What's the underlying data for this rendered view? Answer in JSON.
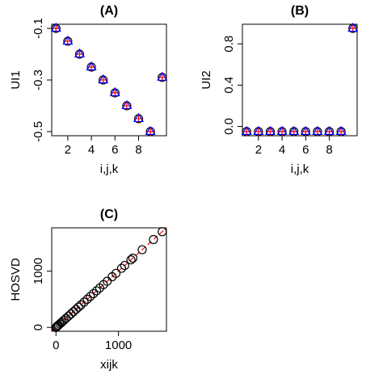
{
  "chart_data": [
    {
      "type": "scatter",
      "title": "(A)",
      "xlabel": "i,j,k",
      "ylabel": "UI1",
      "x": [
        1,
        2,
        3,
        4,
        5,
        6,
        7,
        8,
        9,
        10
      ],
      "series": [
        {
          "color": "#000000",
          "marker": "circle",
          "values": [
            -0.1,
            -0.15,
            -0.2,
            -0.25,
            -0.3,
            -0.35,
            -0.4,
            -0.45,
            -0.5,
            -0.29
          ]
        },
        {
          "color": "#ff0000",
          "marker": "plus",
          "values": [
            -0.1,
            -0.15,
            -0.2,
            -0.25,
            -0.3,
            -0.35,
            -0.4,
            -0.45,
            -0.5,
            -0.29
          ]
        },
        {
          "color": "#0000ff",
          "marker": "triangle",
          "values": [
            -0.1,
            -0.15,
            -0.2,
            -0.25,
            -0.3,
            -0.35,
            -0.4,
            -0.45,
            -0.5,
            -0.29
          ]
        }
      ],
      "xlim": [
        0.64,
        10.36
      ],
      "xticks": [
        2,
        4,
        6,
        8
      ],
      "ylim": [
        -0.516,
        -0.084
      ],
      "yticks": [
        -0.1,
        -0.3,
        -0.5
      ]
    },
    {
      "type": "scatter",
      "title": "(B)",
      "xlabel": "i,j,k",
      "ylabel": "UI2",
      "x": [
        1,
        2,
        3,
        4,
        5,
        6,
        7,
        8,
        9,
        10
      ],
      "series": [
        {
          "color": "#000000",
          "marker": "circle",
          "values": [
            -0.05,
            -0.05,
            -0.05,
            -0.05,
            -0.05,
            -0.05,
            -0.05,
            -0.05,
            -0.05,
            0.95
          ]
        },
        {
          "color": "#ff0000",
          "marker": "plus",
          "values": [
            -0.05,
            -0.05,
            -0.05,
            -0.05,
            -0.05,
            -0.05,
            -0.05,
            -0.05,
            -0.05,
            0.95
          ]
        },
        {
          "color": "#0000ff",
          "marker": "triangle",
          "values": [
            -0.05,
            -0.05,
            -0.05,
            -0.05,
            -0.05,
            -0.05,
            -0.05,
            -0.05,
            -0.05,
            0.95
          ]
        }
      ],
      "xlim": [
        0.64,
        10.36
      ],
      "xticks": [
        2,
        4,
        6,
        8
      ],
      "ylim": [
        -0.09,
        0.99
      ],
      "yticks": [
        {
          "value": 0,
          "label": "0.0"
        },
        0.4,
        0.8
      ]
    },
    {
      "type": "scatter",
      "title": "(C)",
      "xlabel": "xijk",
      "ylabel": "HOSVD",
      "diagonal": true,
      "diagonal_color": "#ff0000",
      "x": [
        0,
        10,
        25,
        40,
        60,
        80,
        100,
        130,
        160,
        200,
        240,
        280,
        320,
        360,
        400,
        450,
        500,
        550,
        600,
        650,
        700,
        760,
        820,
        900,
        960,
        1050,
        1100,
        1200,
        1230,
        1380,
        1560,
        1700
      ],
      "series": [
        {
          "color": "#000000",
          "marker": "circle",
          "values": [
            0,
            10,
            25,
            40,
            60,
            80,
            100,
            130,
            160,
            200,
            240,
            280,
            320,
            360,
            400,
            450,
            500,
            550,
            600,
            650,
            700,
            760,
            820,
            900,
            960,
            1050,
            1100,
            1200,
            1230,
            1380,
            1560,
            1700
          ]
        }
      ],
      "xlim": [
        -68,
        1768
      ],
      "xticks": [
        0,
        1000
      ],
      "ylim": [
        -68,
        1768
      ],
      "yticks": [
        0,
        1000
      ]
    }
  ]
}
